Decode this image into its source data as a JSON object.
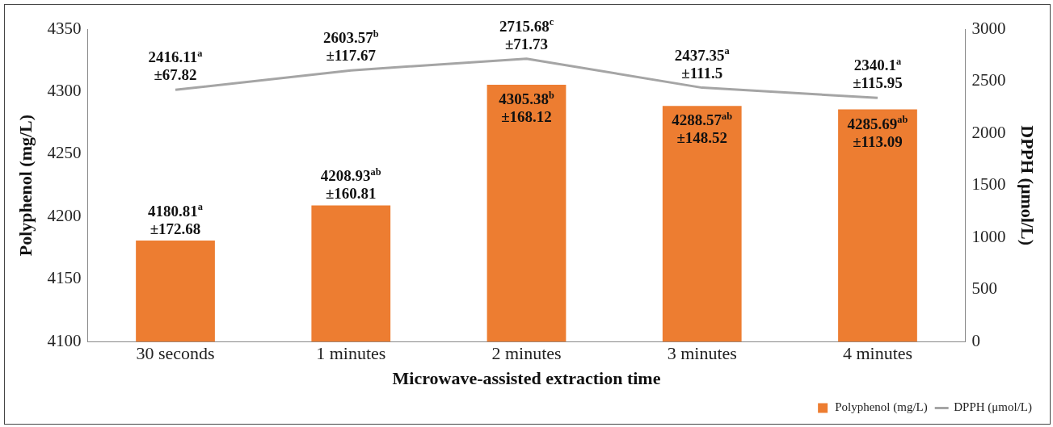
{
  "chart_data": {
    "type": "bar",
    "categories": [
      "30 seconds",
      "1 minutes",
      "2 minutes",
      "3 minutes",
      "4 minutes"
    ],
    "xlabel": "Microwave-assisted extraction time",
    "ylabel": "Polyphenol (mg/L)",
    "y2label": "DPPH (μmol/L)",
    "ylim": [
      4100,
      4350
    ],
    "yticks": [
      4100,
      4150,
      4200,
      4250,
      4300,
      4350
    ],
    "y2lim": [
      0,
      3000
    ],
    "y2ticks": [
      0,
      500,
      1000,
      1500,
      2000,
      2500,
      3000
    ],
    "legend": "bottom right",
    "marker": "none",
    "grid": false,
    "series": [
      {
        "name": "Polyphenol (mg/L)",
        "color": "#ed7d31",
        "values": [
          4180.81,
          4208.93,
          4305.38,
          4288.57,
          4285.69
        ],
        "value_labels": [
          "4180.81$^{a}$\n±172.68",
          "4208.93$^{ab}$\n±160.81",
          "4305.38$^{b}$\n±168.12",
          "4288.57$^{ab}$\n±148.52",
          "4285.69$^{ab}$\n±113.09"
        ]
      },
      {
        "name": "DPPH (μmol/L)",
        "type": "line",
        "axis": "y2",
        "color": "#a5a5a5",
        "values": [
          2416.11,
          2603.57,
          2715.68,
          2437.35,
          2340.1
        ],
        "value_labels": [
          "2416.11$^{a}$\n±67.82",
          "2603.57$^{b}$\n±117.67",
          "2715.68$^{c}$\n±71.73",
          "2437.35$^{a}$\n±111.5",
          "2340.1$^{a}$\n±115.95"
        ]
      }
    ]
  }
}
